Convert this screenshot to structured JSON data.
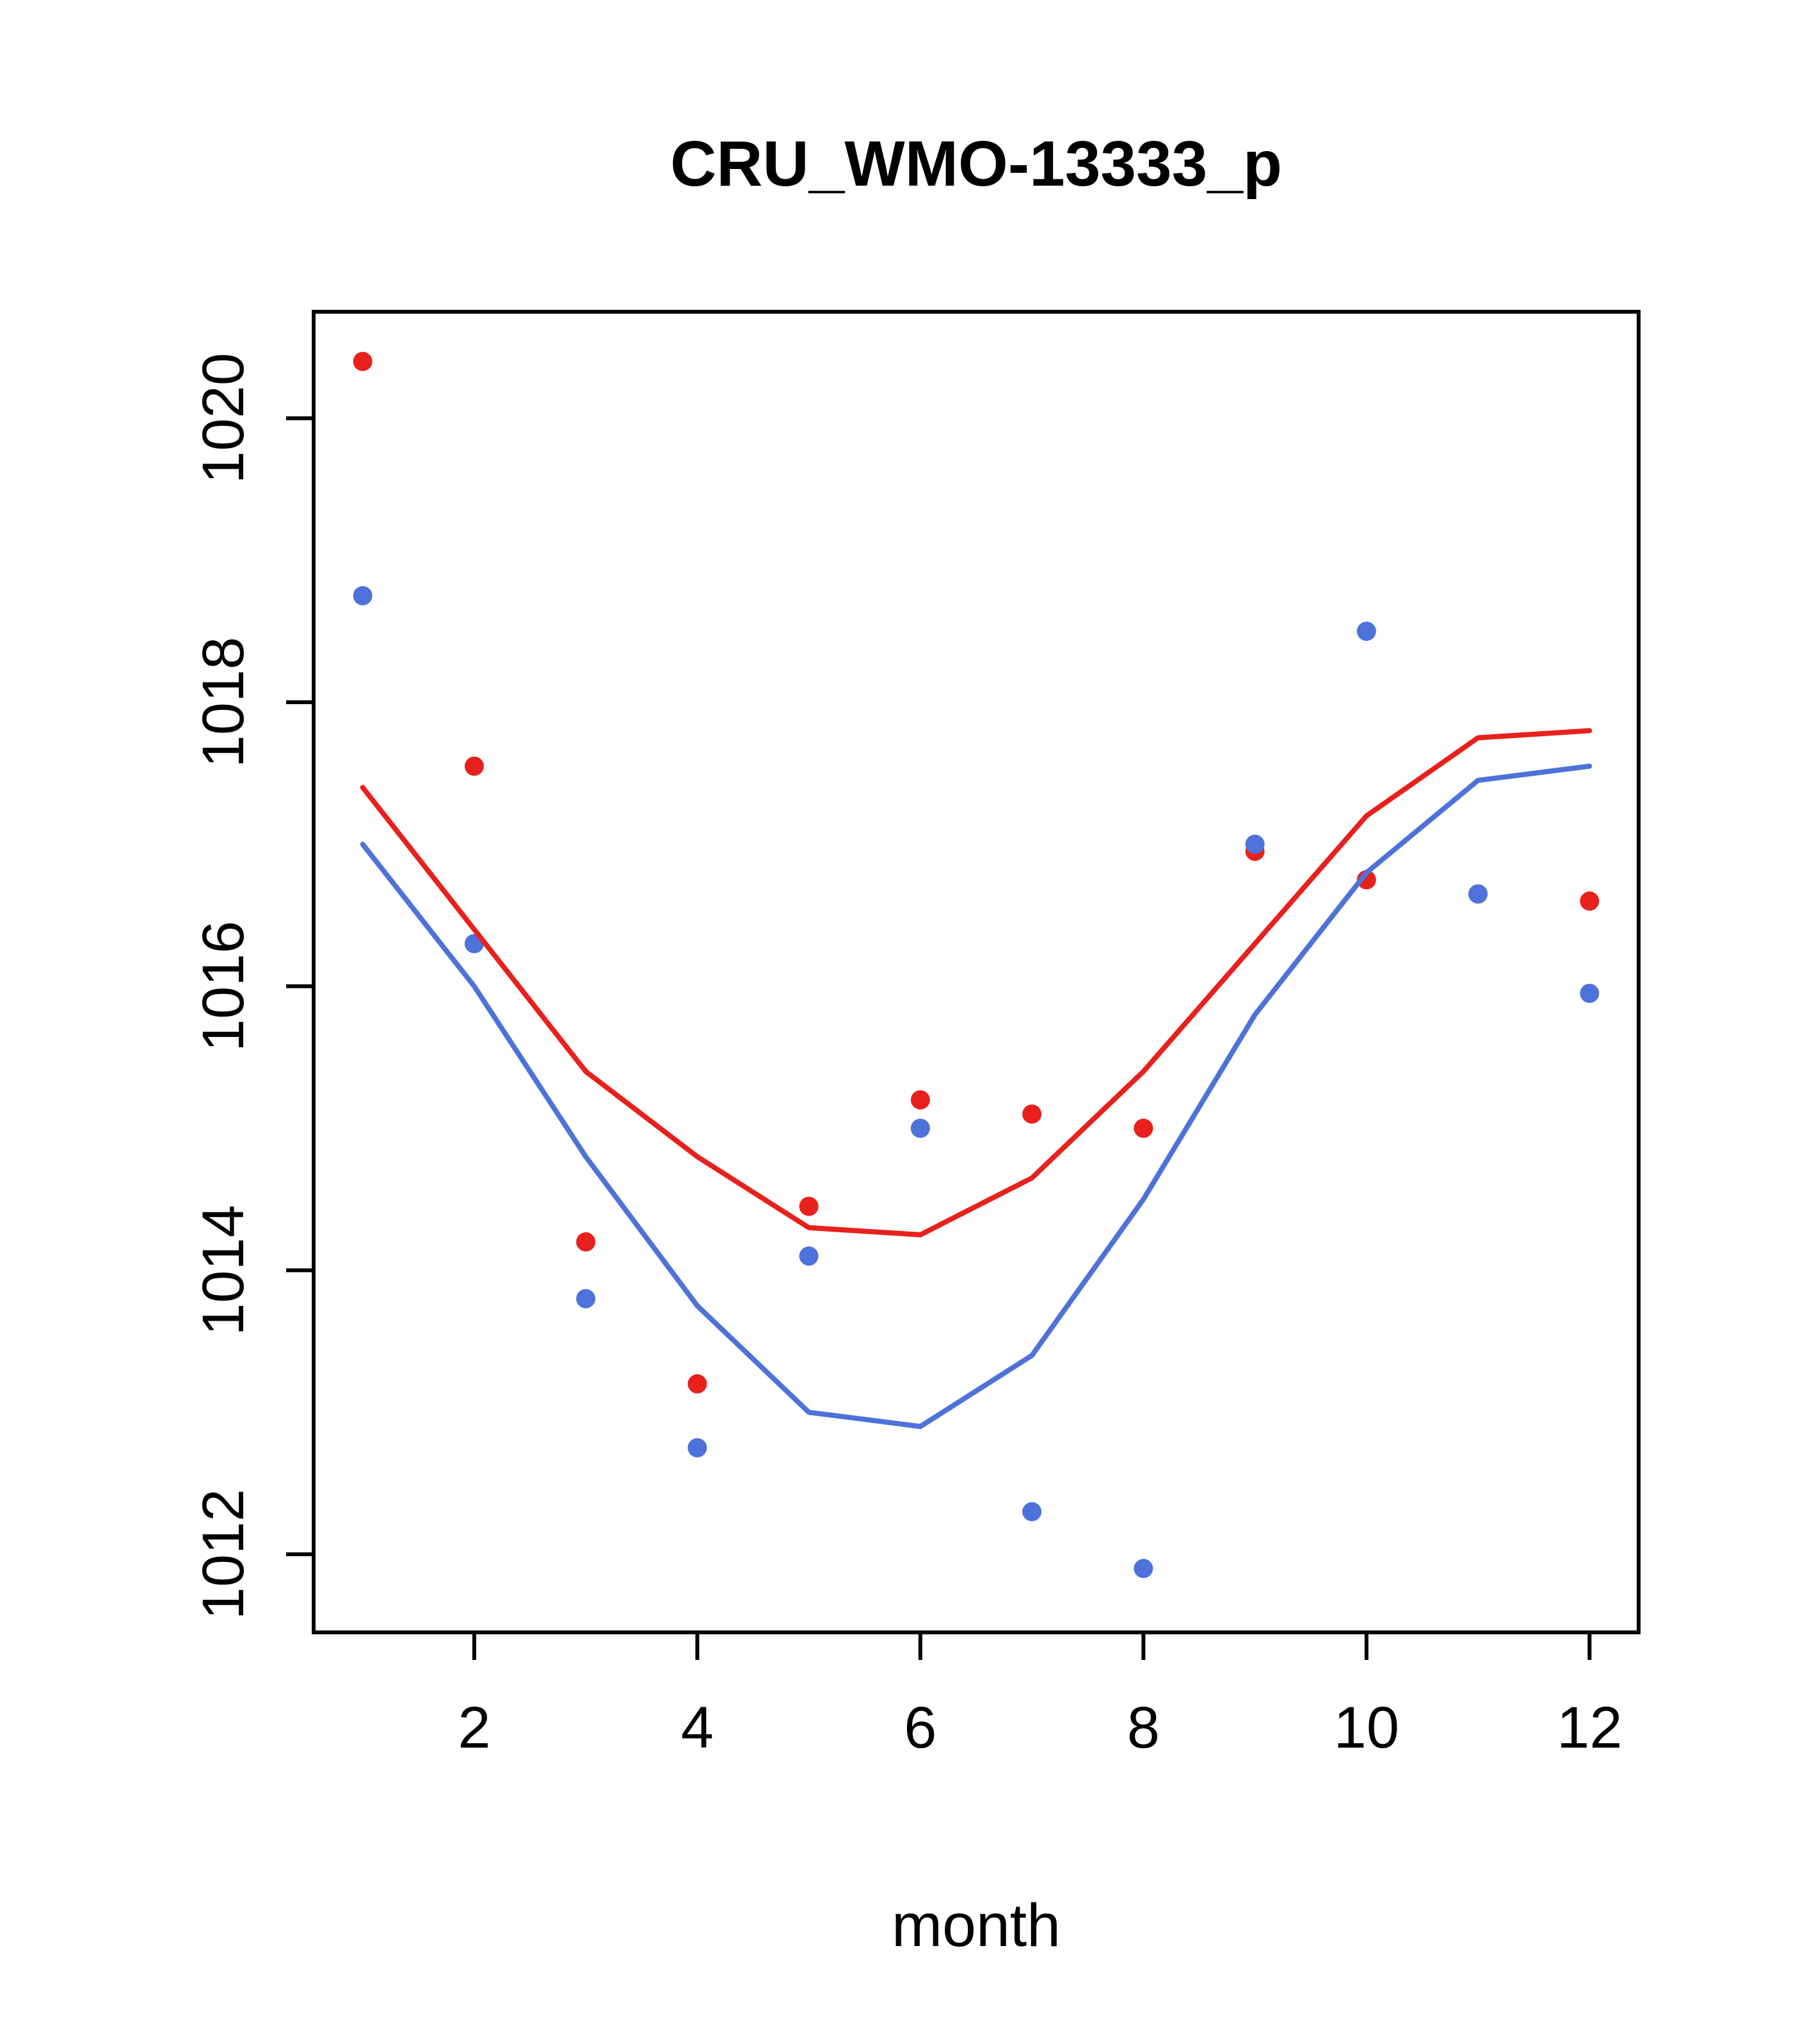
{
  "title": "CRU_WMO-13333_p",
  "chart_data": {
    "type": "line",
    "title": "CRU_WMO-13333_p",
    "xlabel": "month",
    "ylabel": "",
    "x": [
      1,
      2,
      3,
      4,
      5,
      6,
      7,
      8,
      9,
      10,
      11,
      12
    ],
    "xlim": [
      0.56,
      12.44
    ],
    "ylim": [
      1011.45,
      1020.75
    ],
    "x_ticks": [
      2,
      4,
      6,
      8,
      10,
      12
    ],
    "y_ticks": [
      1012,
      1014,
      1016,
      1018,
      1020
    ],
    "grid": "off",
    "legend": "none",
    "colors": {
      "red": "#e8211d",
      "blue": "#4d72d9",
      "axis": "#000000",
      "background": "#ffffff"
    },
    "series": [
      {
        "name": "red-points",
        "kind": "scatter",
        "color": "#e8211d",
        "values": [
          1020.4,
          1017.55,
          1014.2,
          1013.2,
          1014.45,
          1015.2,
          1015.1,
          1015.0,
          1016.95,
          1016.75,
          1016.65,
          1016.6
        ]
      },
      {
        "name": "blue-points",
        "kind": "scatter",
        "color": "#4d72d9",
        "values": [
          1018.75,
          1016.3,
          1013.8,
          1012.75,
          1014.1,
          1015.0,
          1012.3,
          1011.9,
          1017.0,
          1018.5,
          1016.65,
          1015.95
        ]
      },
      {
        "name": "red-line",
        "kind": "line",
        "color": "#e8211d",
        "values": [
          1017.4,
          1016.4,
          1015.4,
          1014.8,
          1014.3,
          1014.25,
          1014.65,
          1015.4,
          1016.3,
          1017.2,
          1017.75,
          1017.8
        ]
      },
      {
        "name": "blue-line",
        "kind": "line",
        "color": "#4d72d9",
        "values": [
          1017.0,
          1016.0,
          1014.8,
          1013.75,
          1013.0,
          1012.9,
          1013.4,
          1014.5,
          1015.8,
          1016.8,
          1017.45,
          1017.55
        ]
      }
    ]
  }
}
